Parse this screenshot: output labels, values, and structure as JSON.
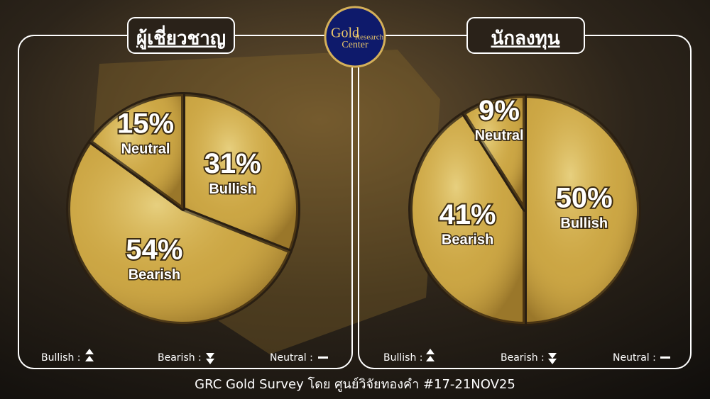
{
  "logo": {
    "gold": "Gold",
    "research": "Research",
    "center": "Center"
  },
  "footer": "GRC Gold Survey โดย ศูนย์วิจัยทองคำ #17-21NOV25",
  "chart_data": [
    {
      "type": "pie",
      "title": "ผู้เชี่ยวชาญ",
      "categories": [
        "Bullish",
        "Bearish",
        "Neutral"
      ],
      "values": [
        31,
        54,
        15
      ],
      "value_labels": [
        "31%",
        "54%",
        "15%"
      ],
      "color": "#c9a443",
      "legend": [
        "Bullish :",
        "Bearish :",
        "Neutral :"
      ]
    },
    {
      "type": "pie",
      "title": "นักลงทุน",
      "categories": [
        "Bullish",
        "Bearish",
        "Neutral"
      ],
      "values": [
        50,
        41,
        9
      ],
      "value_labels": [
        "50%",
        "41%",
        "9%"
      ],
      "color": "#c9a443",
      "legend": [
        "Bullish :",
        "Bearish :",
        "Neutral :"
      ]
    }
  ]
}
